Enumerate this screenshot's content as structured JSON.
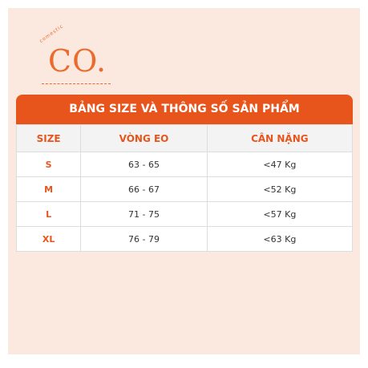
{
  "logo": {
    "text": "CO.",
    "tagline": "comestic"
  },
  "table": {
    "title": "BẢNG SIZE VÀ THÔNG SỐ SẢN PHẨM",
    "columns": [
      "SIZE",
      "VÒNG EO",
      "CÂN NẶNG"
    ],
    "rows": [
      [
        "S",
        "63 - 65",
        "<47 Kg"
      ],
      [
        "M",
        "66 - 67",
        "<52 Kg"
      ],
      [
        "L",
        "71 - 75",
        "<57 Kg"
      ],
      [
        "XL",
        "76 - 79",
        "<63 Kg"
      ]
    ]
  }
}
